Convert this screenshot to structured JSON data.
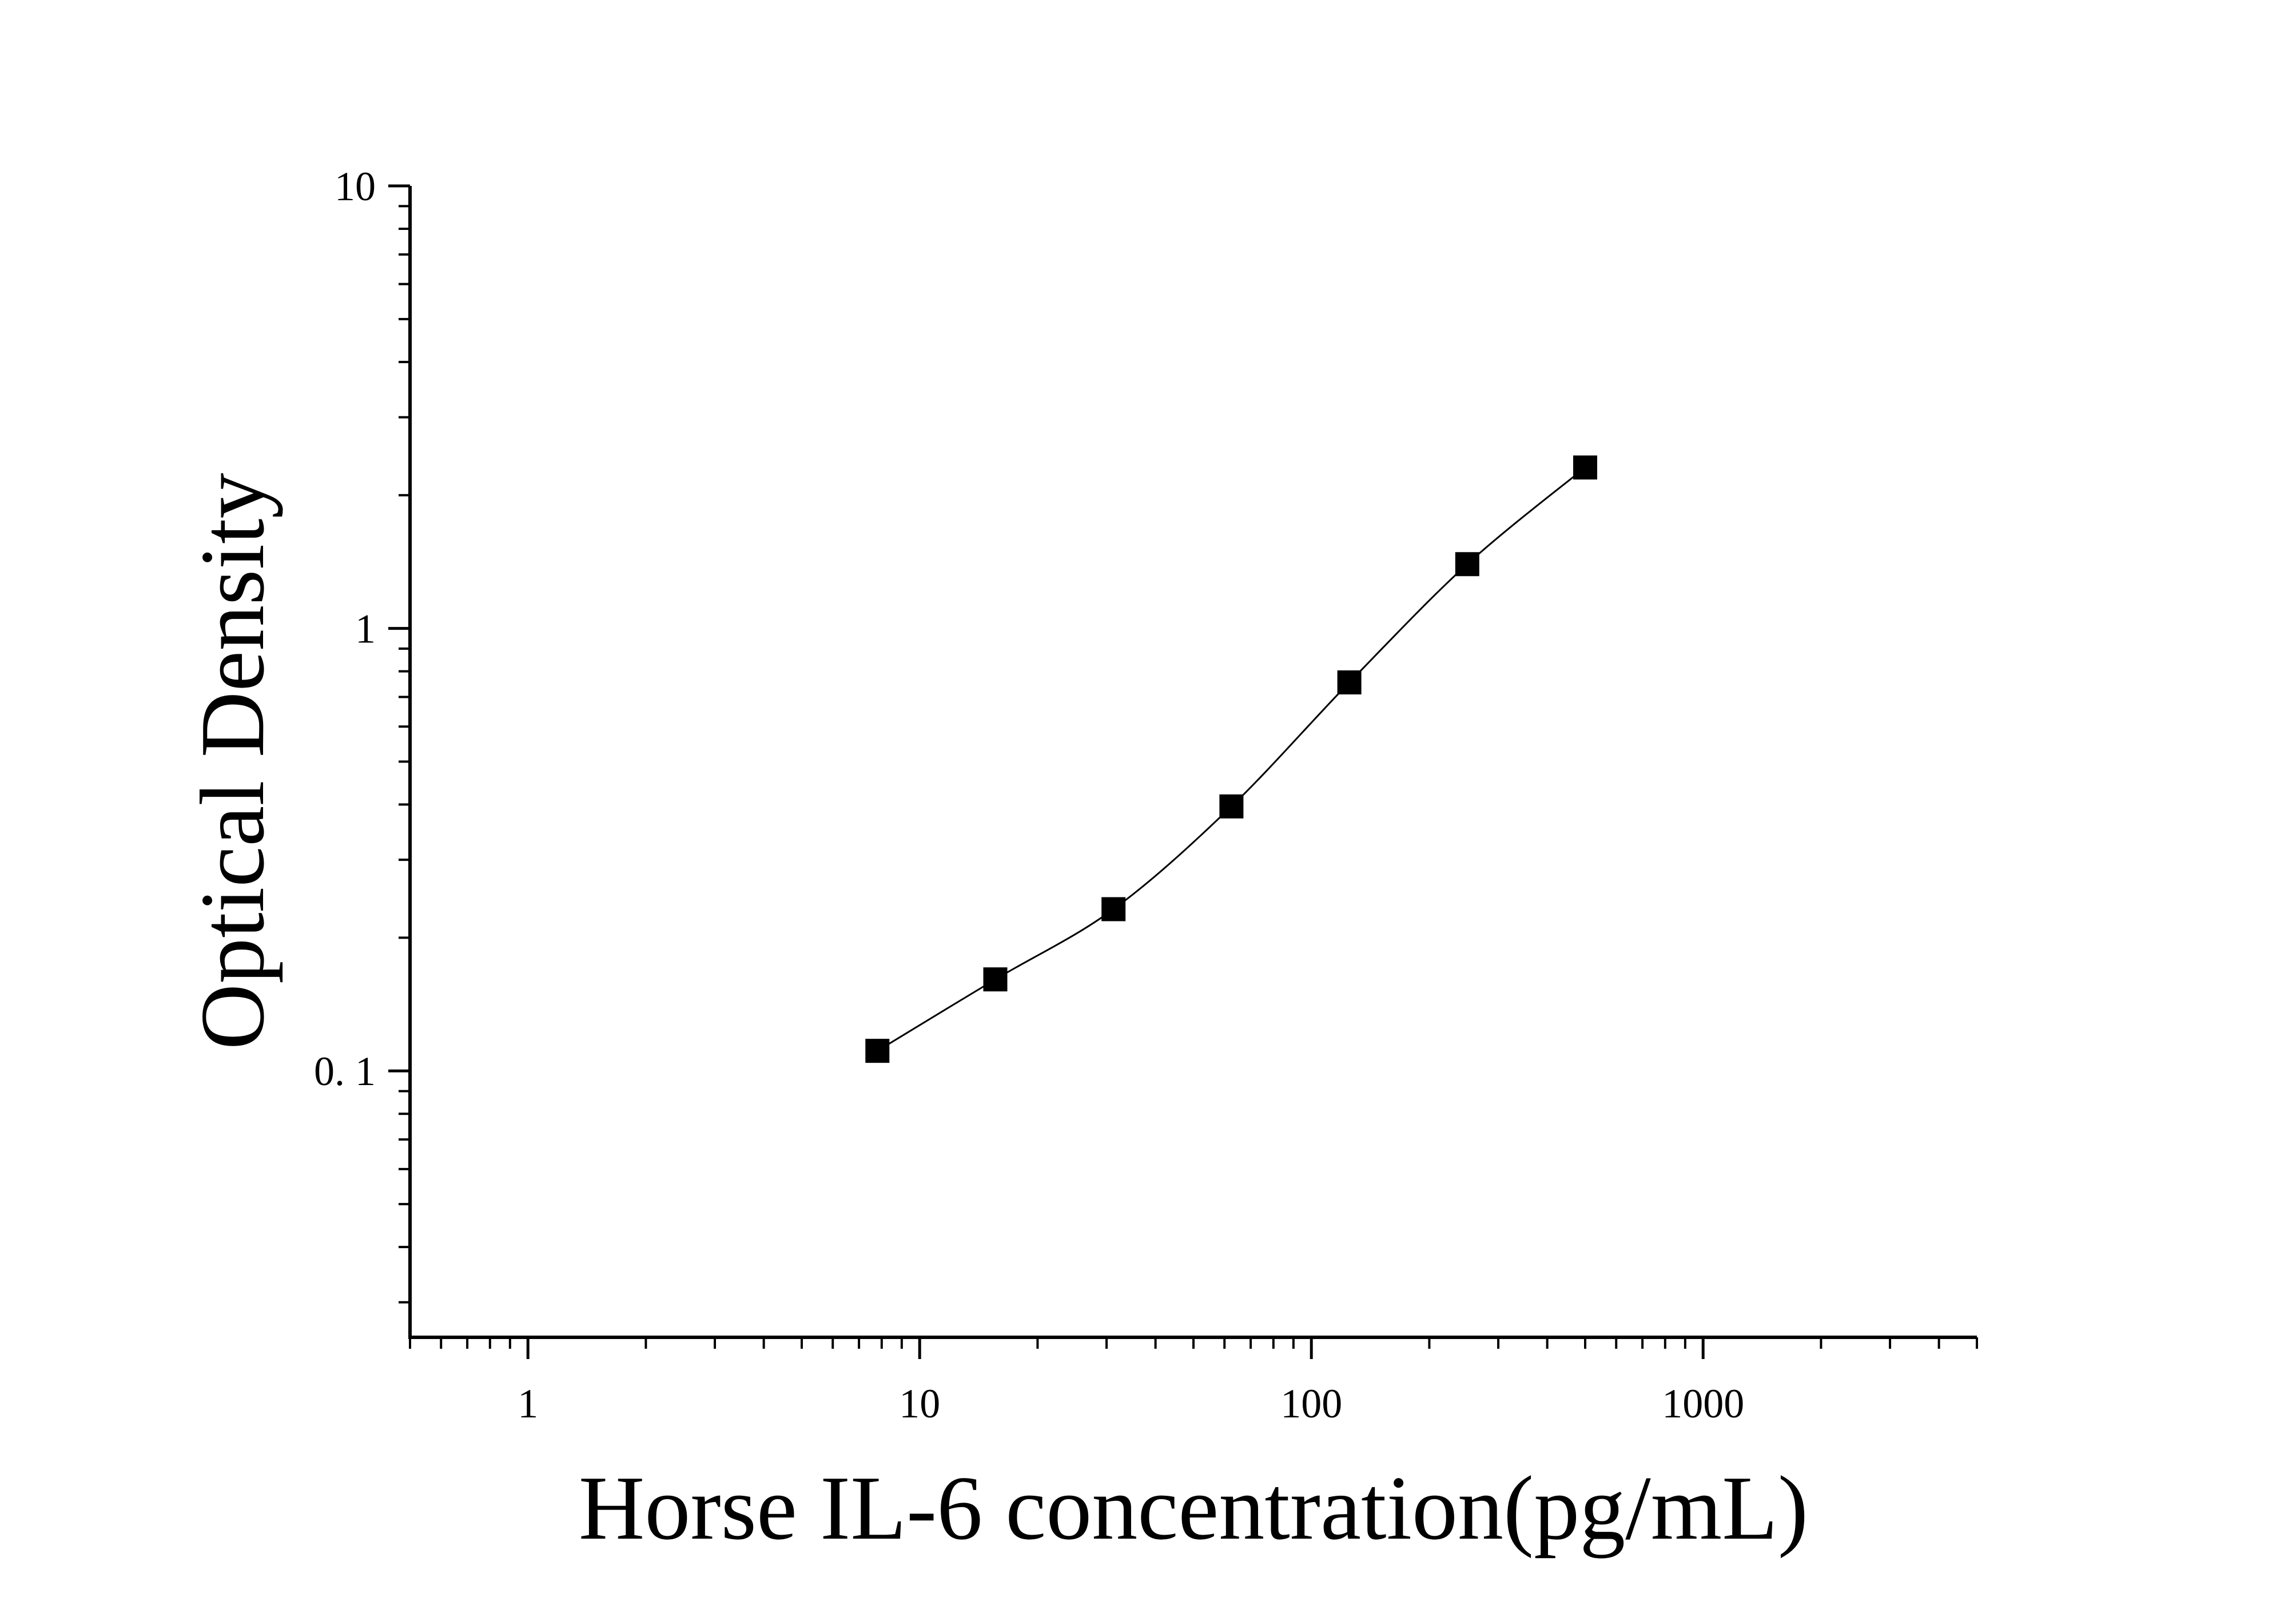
{
  "chart_data": {
    "type": "scatter",
    "x_label": "Horse IL-6 concentration(pg/mL)",
    "y_label": "Optical Density",
    "x_log": true,
    "y_log": true,
    "xlim": [
      0.5,
      5000
    ],
    "ylim": [
      0.025,
      10
    ],
    "xticks": [
      1,
      10,
      100,
      1000
    ],
    "yticks": [
      {
        "value": 0.1,
        "label": "0. 1"
      },
      1,
      10
    ],
    "fit_curve": true,
    "series": [
      {
        "color": "#000000",
        "x": [
          7.8,
          15.6,
          31.25,
          62.5,
          125,
          250,
          500
        ],
        "values": [
          0.111,
          0.161,
          0.232,
          0.396,
          0.755,
          1.397,
          2.31
        ]
      }
    ]
  }
}
